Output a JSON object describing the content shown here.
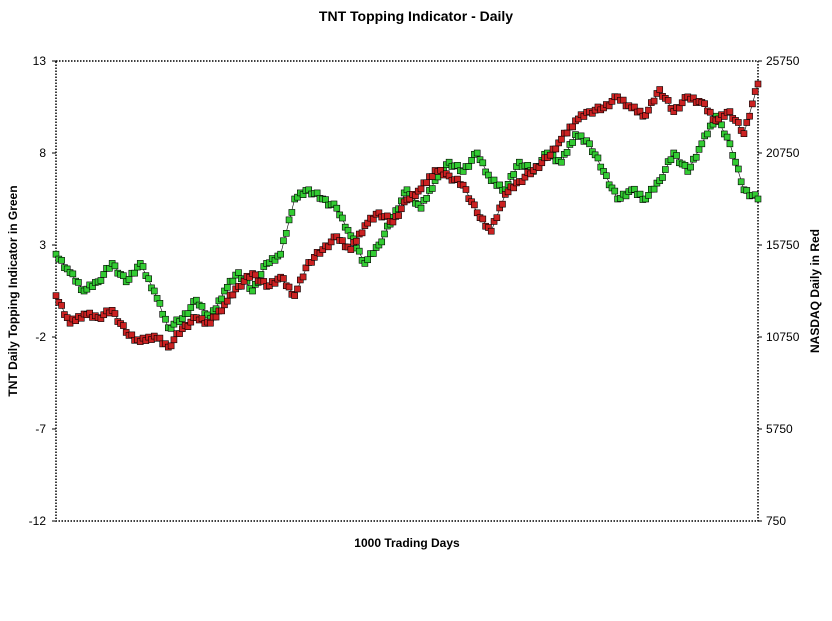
{
  "chart_data": {
    "type": "line",
    "title": "TNT Topping Indicator - Daily",
    "xlabel": "1000 Trading Days",
    "ylabel_left": "TNT Daily Topping Indicator in Green",
    "ylabel_right": "NASDAQ Daily in Red",
    "xlim": [
      0,
      1000
    ],
    "ylim_left": [
      -12,
      13
    ],
    "ylim_right": [
      750,
      25750
    ],
    "yticks_left": [
      "13",
      "8",
      "3",
      "-2",
      "-7",
      "-12"
    ],
    "yticks_right": [
      "25750",
      "20750",
      "15750",
      "10750",
      "5750",
      "750"
    ],
    "grid": false,
    "legend": "none",
    "colors": {
      "tnt": "#33cc33",
      "nasdaq": "#cc2222",
      "marker_edge": "#000000"
    },
    "series": [
      {
        "axis": "left",
        "color": "#33cc33",
        "x": [
          0,
          20,
          40,
          60,
          80,
          100,
          120,
          140,
          160,
          180,
          200,
          220,
          240,
          260,
          280,
          300,
          320,
          340,
          360,
          380,
          400,
          420,
          440,
          460,
          480,
          500,
          520,
          540,
          560,
          580,
          600,
          620,
          640,
          660,
          680,
          700,
          720,
          740,
          760,
          780,
          800,
          820,
          840,
          860,
          880,
          900,
          920,
          940,
          960,
          980,
          1000
        ],
        "values": [
          2.5,
          1.5,
          0.5,
          1.0,
          2.0,
          1.0,
          2.0,
          0.5,
          -1.5,
          -1.0,
          0.0,
          -1.0,
          0.5,
          1.5,
          0.5,
          2.0,
          2.5,
          5.5,
          6.0,
          5.5,
          5.0,
          3.5,
          2.0,
          3.0,
          4.5,
          6.0,
          5.0,
          6.5,
          7.5,
          7.0,
          8.0,
          6.5,
          6.0,
          7.5,
          7.0,
          8.0,
          7.5,
          9.0,
          8.5,
          7.0,
          5.5,
          6.0,
          5.5,
          6.5,
          8.0,
          7.0,
          8.5,
          10.0,
          8.5,
          6.0,
          5.5
        ]
      },
      {
        "axis": "right",
        "color": "#cc2222",
        "x": [
          0,
          20,
          40,
          60,
          80,
          100,
          120,
          140,
          160,
          180,
          200,
          220,
          240,
          260,
          280,
          300,
          320,
          340,
          360,
          380,
          400,
          420,
          440,
          460,
          480,
          500,
          520,
          540,
          560,
          580,
          600,
          620,
          640,
          660,
          680,
          700,
          720,
          740,
          760,
          780,
          800,
          820,
          840,
          860,
          880,
          900,
          920,
          940,
          960,
          980,
          1000
        ],
        "values": [
          13000,
          11500,
          12000,
          11800,
          12200,
          11000,
          10500,
          10800,
          10200,
          11200,
          11800,
          11500,
          12500,
          13500,
          14200,
          13500,
          14000,
          13000,
          14800,
          15500,
          16200,
          15500,
          16800,
          17500,
          17000,
          18200,
          18800,
          19800,
          19500,
          19000,
          17500,
          16500,
          18500,
          19200,
          19800,
          20500,
          21500,
          22500,
          23000,
          23200,
          23800,
          23200,
          22800,
          24200,
          23000,
          23800,
          23500,
          22500,
          23000,
          21800,
          24500
        ]
      }
    ]
  }
}
